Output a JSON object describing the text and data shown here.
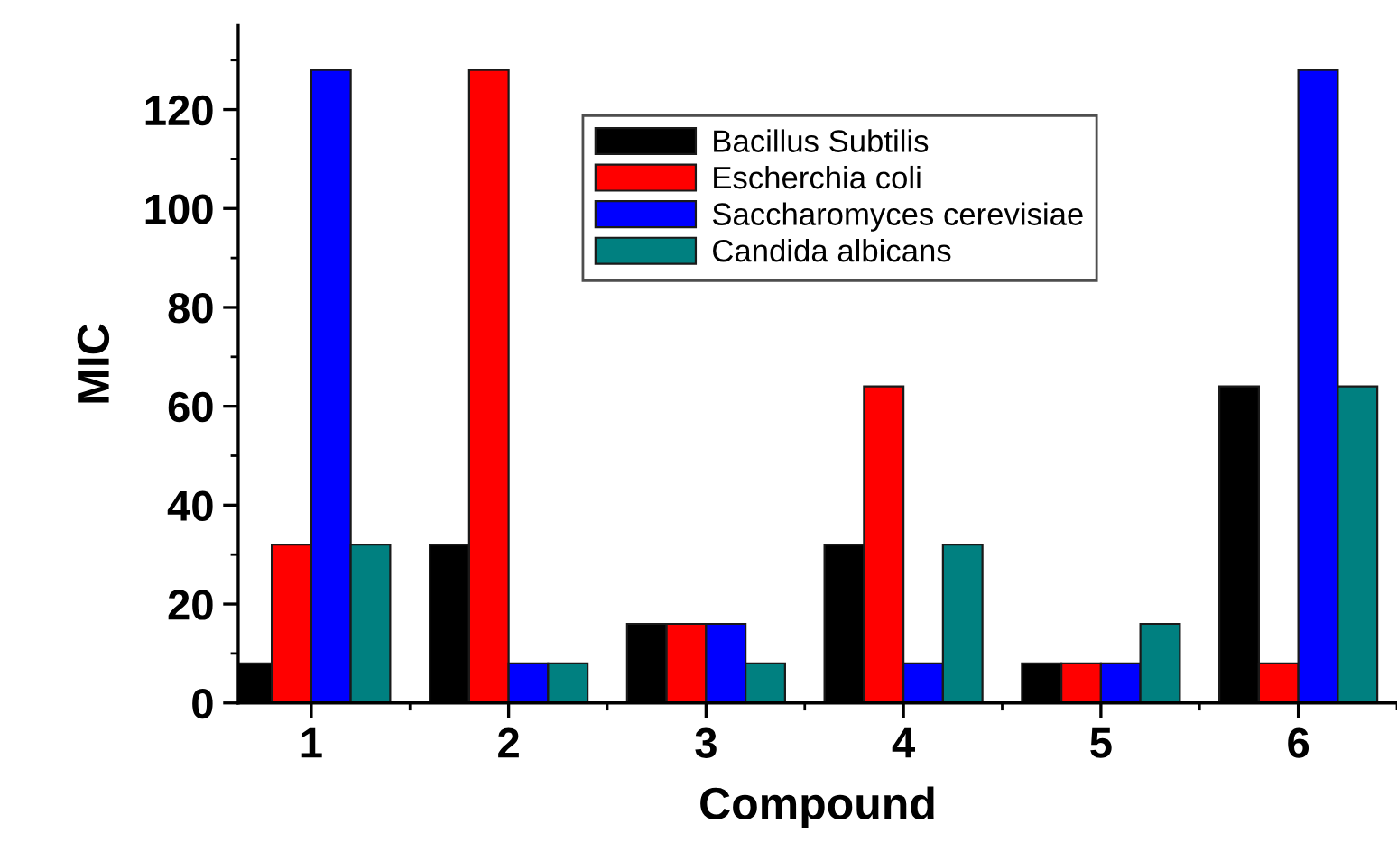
{
  "chart_data": {
    "type": "bar",
    "xlabel": "Compound",
    "ylabel": "MIC",
    "categories": [
      "1",
      "2",
      "3",
      "4",
      "5",
      "6"
    ],
    "series": [
      {
        "name": "Bacillus Subtilis",
        "color": "#000000",
        "values": [
          8,
          32,
          16,
          32,
          8,
          64
        ]
      },
      {
        "name": "Escherchia coli",
        "color": "#ff0000",
        "values": [
          32,
          128,
          16,
          64,
          8,
          8
        ]
      },
      {
        "name": "Saccharomyces cerevisiae",
        "color": "#0000ff",
        "values": [
          128,
          8,
          16,
          8,
          8,
          128
        ]
      },
      {
        "name": "Candida albicans",
        "color": "#008080",
        "values": [
          32,
          8,
          8,
          32,
          16,
          64
        ]
      }
    ],
    "ylim": [
      0,
      137
    ],
    "yticks": [
      0,
      20,
      40,
      60,
      80,
      100,
      120
    ],
    "grid": false,
    "legend": "top"
  }
}
